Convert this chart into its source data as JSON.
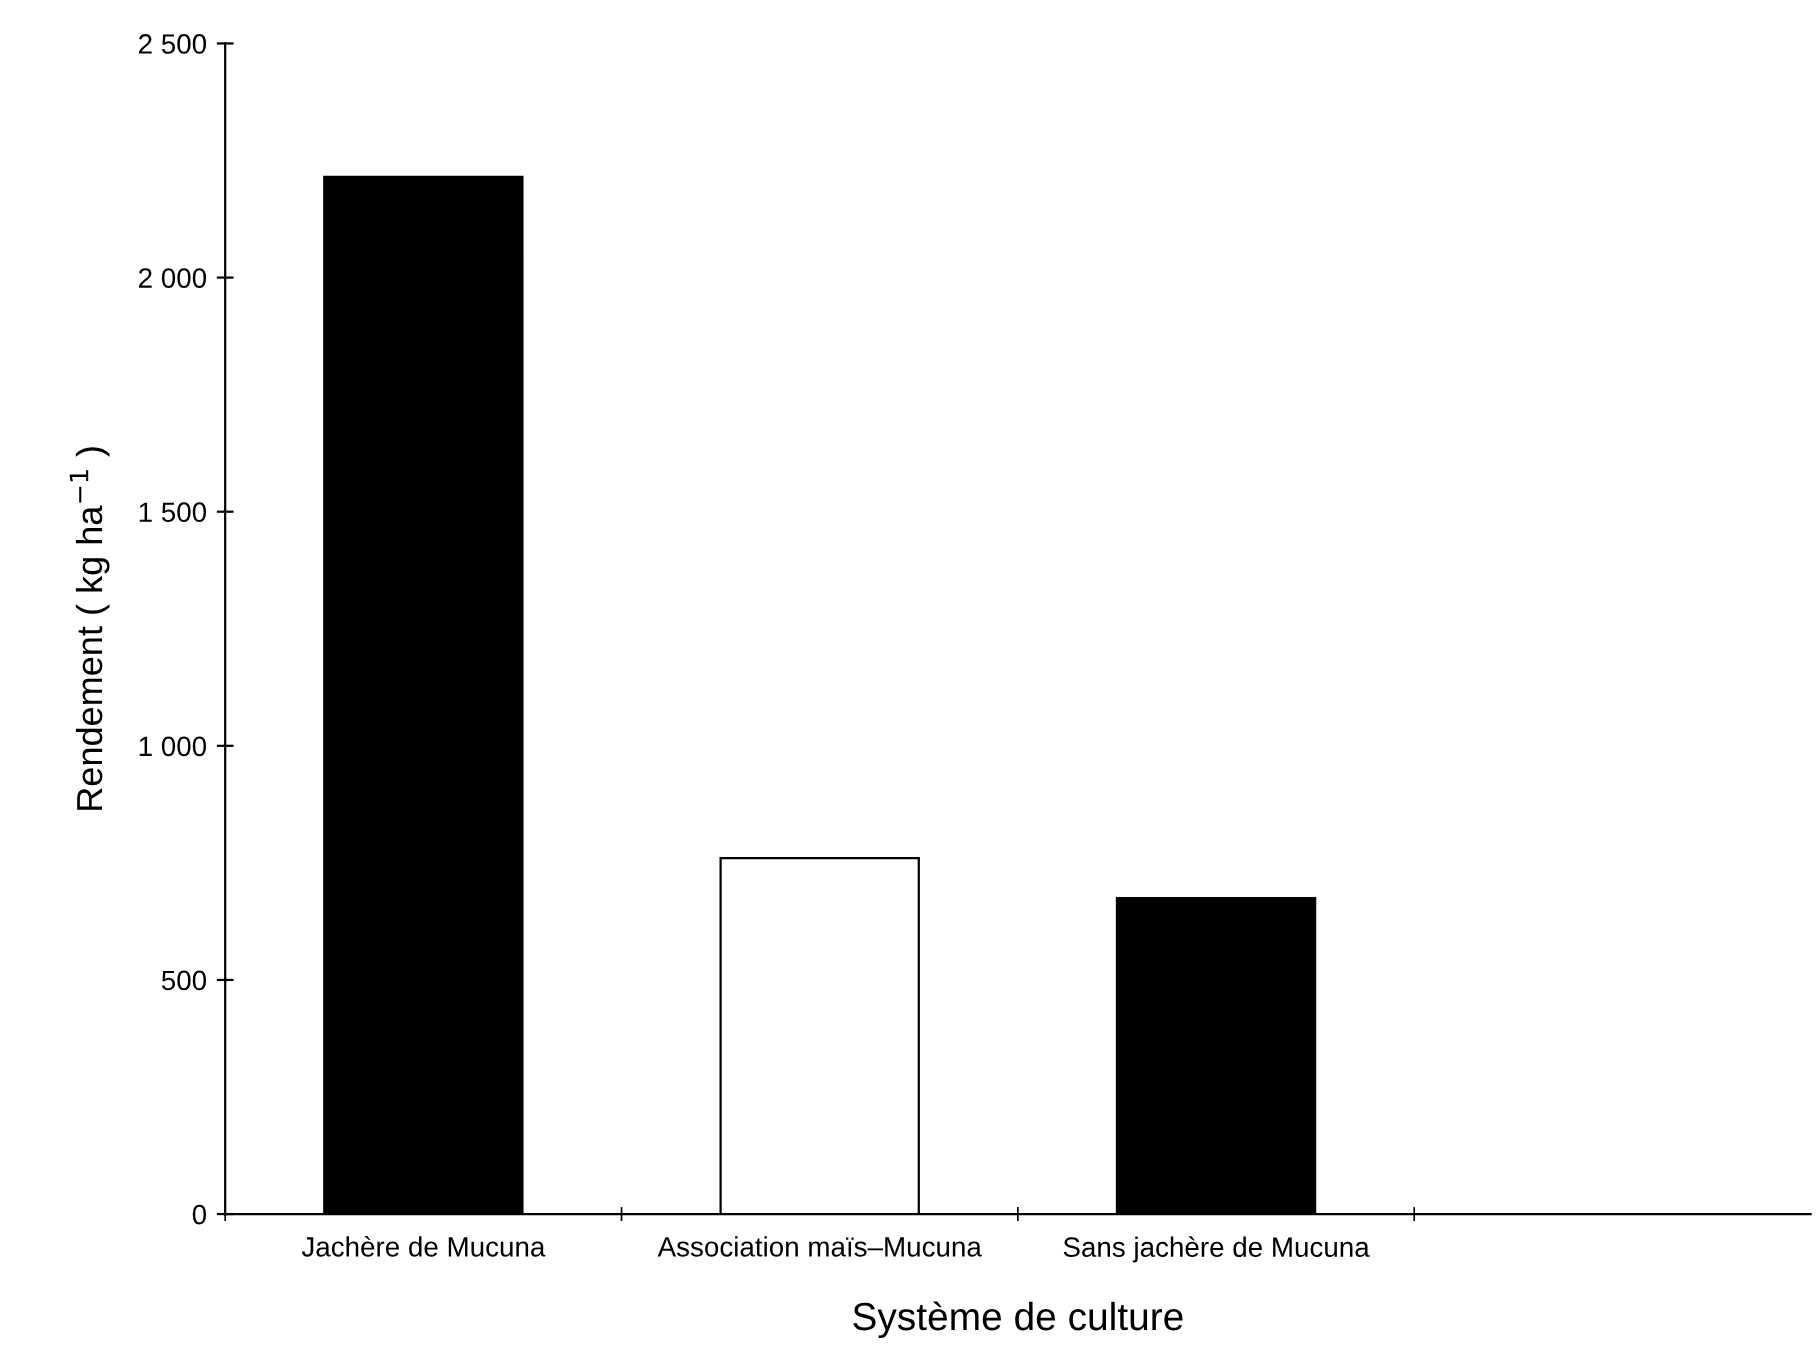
{
  "chart_data": {
    "type": "bar",
    "xlabel": "Système de culture",
    "ylabel": "Rendement ( kg ha$^{−1}$ )",
    "categories": [
      "Jachère de Mucuna",
      "Association maïs–Mucuna",
      "Sans jachère de Mucuna",
      null
    ],
    "values": [
      2215,
      760,
      675,
      null
    ],
    "colors": [
      "#000000",
      "#ffffff",
      "#000000",
      "#000000"
    ],
    "ylim": [
      0,
      2500
    ],
    "yticks": [
      {
        "value": 0,
        "label": "0"
      },
      {
        "value": 500,
        "label": "500"
      },
      {
        "value": 1000,
        "label": "1 000"
      },
      {
        "value": 1500,
        "label": "1 500"
      },
      {
        "value": 2000,
        "label": "2 000"
      },
      {
        "value": 2500,
        "label": "2 500"
      }
    ],
    "grid": false,
    "legend": false
  }
}
